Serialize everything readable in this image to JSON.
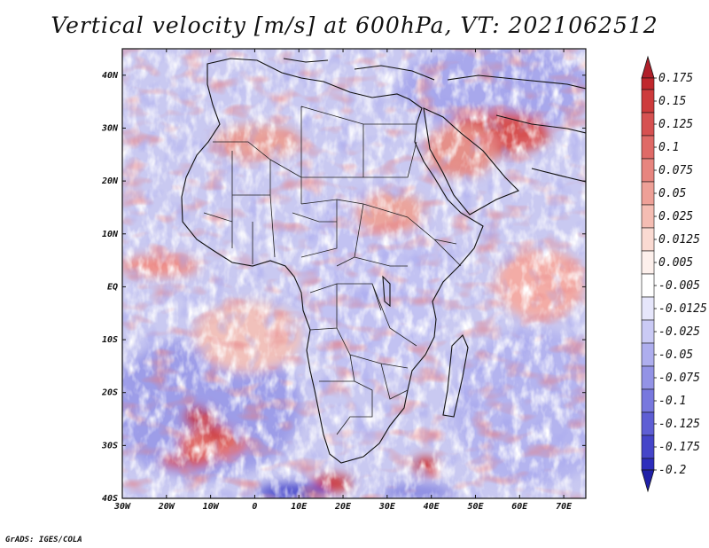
{
  "title": "Vertical velocity [m/s] at 600hPa, VT: 2021062512",
  "credit": "GrADS: IGES/COLA",
  "map": {
    "x_range": [
      -30,
      75
    ],
    "y_range": [
      -40,
      45
    ],
    "x_ticks": [
      {
        "value": -30,
        "label": "30W"
      },
      {
        "value": -20,
        "label": "20W"
      },
      {
        "value": -10,
        "label": "10W"
      },
      {
        "value": 0,
        "label": "0"
      },
      {
        "value": 10,
        "label": "10E"
      },
      {
        "value": 20,
        "label": "20E"
      },
      {
        "value": 30,
        "label": "30E"
      },
      {
        "value": 40,
        "label": "40E"
      },
      {
        "value": 50,
        "label": "50E"
      },
      {
        "value": 60,
        "label": "60E"
      },
      {
        "value": 70,
        "label": "70E"
      }
    ],
    "y_ticks": [
      {
        "value": 40,
        "label": "40N"
      },
      {
        "value": 30,
        "label": "30N"
      },
      {
        "value": 20,
        "label": "20N"
      },
      {
        "value": 10,
        "label": "10N"
      },
      {
        "value": 0,
        "label": "EQ"
      },
      {
        "value": -10,
        "label": "10S"
      },
      {
        "value": -20,
        "label": "20S"
      },
      {
        "value": -30,
        "label": "30S"
      },
      {
        "value": -40,
        "label": "40S"
      }
    ]
  },
  "colorbar": {
    "levels": [
      {
        "label": "0.175",
        "color": "#c0282d"
      },
      {
        "label": "0.15",
        "color": "#cd3b3c"
      },
      {
        "label": "0.125",
        "color": "#d65151"
      },
      {
        "label": "0.1",
        "color": "#df6a67"
      },
      {
        "label": "0.075",
        "color": "#e7857f"
      },
      {
        "label": "0.05",
        "color": "#eea097"
      },
      {
        "label": "0.025",
        "color": "#f5bdb3"
      },
      {
        "label": "0.0125",
        "color": "#fadad2"
      },
      {
        "label": "0.005",
        "color": "#fdf0ec"
      },
      {
        "label": "-0.005",
        "color": "#ffffff"
      },
      {
        "label": "-0.0125",
        "color": "#e6e6fb"
      },
      {
        "label": "-0.025",
        "color": "#cacaf5"
      },
      {
        "label": "-0.05",
        "color": "#aeaeee"
      },
      {
        "label": "-0.075",
        "color": "#9393e6"
      },
      {
        "label": "-0.1",
        "color": "#7878de"
      },
      {
        "label": "-0.125",
        "color": "#5e5ed4"
      },
      {
        "label": "-0.175",
        "color": "#4545c9"
      },
      {
        "label": "-0.2",
        "color": "#2d2dbc"
      }
    ],
    "top_arrow_color": "#b0202a",
    "bottom_arrow_color": "#2020a8",
    "below_color": "#2424b0"
  }
}
